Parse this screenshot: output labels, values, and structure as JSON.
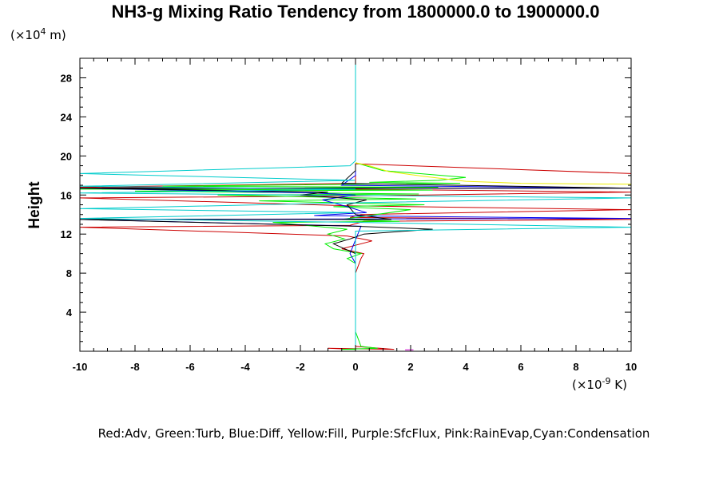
{
  "chart_data": {
    "type": "line",
    "title": "NH3-g Mixing Ratio Tendency from 1800000.0 to 1900000.0",
    "ylabel": "Height",
    "y_unit_prefix": "(×10",
    "y_unit_exp": "4",
    "y_unit_suffix": " m)",
    "x_unit_prefix": "(×10",
    "x_unit_exp": "-9",
    "x_unit_suffix": " K)",
    "xlim": [
      -10,
      10
    ],
    "ylim": [
      0,
      30
    ],
    "x_ticks": [
      -10,
      -8,
      -6,
      -4,
      -2,
      0,
      2,
      4,
      6,
      8,
      10
    ],
    "y_ticks": [
      4,
      8,
      12,
      16,
      20,
      24,
      28
    ],
    "grid": false,
    "legend_text": "Red:Adv,  Green:Turb,  Blue:Diff,  Yellow:Fill,  Purple:SfcFlux,  Pink:RainEvap,Cyan:Condensation",
    "series": [
      {
        "color": "#cc0000",
        "points": [
          [
            0,
            0.2
          ],
          [
            -1,
            0.3
          ],
          [
            1.4,
            0.2
          ],
          [
            0,
            0.5
          ],
          [
            0,
            8
          ],
          [
            0.2,
            9.5
          ],
          [
            0.3,
            10
          ],
          [
            -0.5,
            10.5
          ],
          [
            0.6,
            11.3
          ],
          [
            -0.3,
            11.8
          ],
          [
            -10,
            12.7
          ],
          [
            -0.2,
            12.9
          ],
          [
            0.3,
            13.3
          ],
          [
            10,
            13.5
          ],
          [
            -0.2,
            13.7
          ],
          [
            0.2,
            14
          ],
          [
            10,
            14.5
          ],
          [
            -0.3,
            14.9
          ],
          [
            -10,
            15.7
          ],
          [
            -0.1,
            15.9
          ],
          [
            10,
            16.3
          ],
          [
            -0.2,
            16.6
          ],
          [
            -10,
            16.8
          ],
          [
            0,
            17.2
          ],
          [
            0,
            19.2
          ],
          [
            10,
            18.2
          ]
        ]
      },
      {
        "color": "#00ee00",
        "points": [
          [
            0,
            0.2
          ],
          [
            -0.5,
            0.2
          ],
          [
            0.8,
            0.3
          ],
          [
            0.2,
            0.5
          ],
          [
            0,
            2
          ],
          [
            0,
            9
          ],
          [
            -0.3,
            9.5
          ],
          [
            0.2,
            10
          ],
          [
            -0.8,
            10.5
          ],
          [
            -1.1,
            11
          ],
          [
            -0.4,
            11.5
          ],
          [
            -1,
            12
          ],
          [
            -0.3,
            12.5
          ],
          [
            -3,
            13.2
          ],
          [
            1.6,
            13.3
          ],
          [
            -0.5,
            13.5
          ],
          [
            2,
            14.5
          ],
          [
            -0.8,
            14.8
          ],
          [
            2.5,
            15
          ],
          [
            -3.5,
            15.4
          ],
          [
            2.2,
            15.6
          ],
          [
            -5,
            16
          ],
          [
            2.3,
            16.1
          ],
          [
            -8,
            16.4
          ],
          [
            2.8,
            16.5
          ],
          [
            -10,
            16.6
          ],
          [
            3,
            16.8
          ],
          [
            -7,
            16.9
          ],
          [
            3.8,
            17.2
          ],
          [
            0.5,
            17.3
          ],
          [
            3,
            17.5
          ],
          [
            4,
            17.8
          ],
          [
            1,
            18.5
          ],
          [
            0,
            19.3
          ]
        ]
      },
      {
        "color": "#0000ee",
        "points": [
          [
            0,
            0.4
          ],
          [
            0,
            9
          ],
          [
            -0.2,
            10
          ],
          [
            0.2,
            12.8
          ],
          [
            -10,
            13.5
          ],
          [
            10,
            13.6
          ],
          [
            -1.5,
            13.9
          ],
          [
            0.4,
            14.2
          ],
          [
            -0.3,
            14.8
          ],
          [
            -1.2,
            15.5
          ],
          [
            0,
            16
          ],
          [
            -1.5,
            16.2
          ],
          [
            -10,
            16.7
          ],
          [
            10,
            16.7
          ],
          [
            -0.5,
            17
          ],
          [
            0,
            18
          ],
          [
            0,
            19.2
          ]
        ]
      },
      {
        "color": "#000000",
        "points": [
          [
            0,
            0.4
          ],
          [
            0,
            8
          ],
          [
            0,
            10
          ],
          [
            -0.4,
            10.5
          ],
          [
            -0.8,
            11
          ],
          [
            -0.2,
            11.5
          ],
          [
            0.3,
            12
          ],
          [
            2.8,
            12.5
          ],
          [
            0,
            12.8
          ],
          [
            -10,
            13.5
          ],
          [
            1.3,
            13.5
          ],
          [
            0,
            14
          ],
          [
            -0.3,
            15
          ],
          [
            0.4,
            15.5
          ],
          [
            -2,
            16
          ],
          [
            -1,
            16.3
          ],
          [
            -10,
            16.7
          ],
          [
            10,
            16.7
          ],
          [
            -0.5,
            17.2
          ],
          [
            0,
            18.5
          ],
          [
            0,
            19.2
          ]
        ]
      },
      {
        "color": "#eeee00",
        "points": [
          [
            0,
            19.3
          ],
          [
            0.5,
            19
          ],
          [
            1.2,
            18.4
          ],
          [
            2.5,
            17.9
          ],
          [
            4,
            17.4
          ],
          [
            6,
            17.2
          ],
          [
            10,
            17.1
          ]
        ]
      },
      {
        "color": "#00cccc",
        "points": [
          [
            0,
            30
          ],
          [
            0,
            19.5
          ],
          [
            -0.2,
            19
          ],
          [
            -10,
            18.2
          ],
          [
            0,
            17.5
          ],
          [
            -10,
            16.9
          ],
          [
            0,
            16.6
          ],
          [
            -10,
            16.2
          ],
          [
            10,
            15.7
          ],
          [
            -0.2,
            15.2
          ],
          [
            -10,
            14.6
          ],
          [
            0,
            14.2
          ],
          [
            -10,
            13.6
          ],
          [
            0,
            13.2
          ],
          [
            10,
            12.7
          ],
          [
            0,
            12.3
          ],
          [
            0,
            0.2
          ]
        ]
      },
      {
        "color": "#cc00cc",
        "points": [
          [
            1.8,
            0.15
          ],
          [
            2.1,
            0.15
          ]
        ]
      }
    ]
  }
}
